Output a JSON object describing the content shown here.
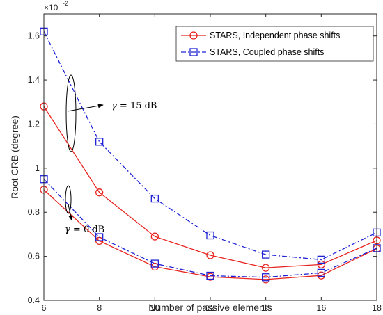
{
  "chart_data": {
    "type": "line",
    "xlabel": "Number of passive elements",
    "ylabel": "Root CRB (degree)",
    "y_exponent": {
      "base": "×10",
      "power": "-2"
    },
    "x": [
      6,
      8,
      10,
      12,
      14,
      16,
      18
    ],
    "xlim": [
      6,
      18
    ],
    "ylim": [
      0.4,
      1.7
    ],
    "x_ticks": [
      "6",
      "8",
      "10",
      "12",
      "14",
      "16",
      "18"
    ],
    "y_ticks": [
      "0.4",
      "0.6",
      "0.8",
      "1",
      "1.2",
      "1.4",
      "1.6"
    ],
    "grid": false,
    "legend_position": "top-right",
    "series": [
      {
        "name": "STARS, Independent phase shifts",
        "group": "gamma = 15 dB",
        "color": "#e8241f",
        "style": "solid",
        "marker": "circle",
        "values": [
          1.28,
          0.89,
          0.69,
          0.605,
          0.548,
          0.563,
          0.672
        ]
      },
      {
        "name": "STARS, Coupled phase shifts",
        "group": "gamma = 15 dB",
        "color": "#1f23d4",
        "style": "dashdot",
        "marker": "square",
        "values": [
          1.62,
          1.12,
          0.862,
          0.695,
          0.608,
          0.585,
          0.708
        ]
      },
      {
        "name": "STARS, Independent phase shifts",
        "group": "gamma = 0 dB",
        "color": "#e8241f",
        "style": "solid",
        "marker": "circle",
        "values": [
          0.902,
          0.67,
          0.553,
          0.507,
          0.495,
          0.513,
          0.635
        ]
      },
      {
        "name": "STARS, Coupled phase shifts",
        "group": "gamma = 0 dB",
        "color": "#1f23d4",
        "style": "dashdot",
        "marker": "square",
        "values": [
          0.95,
          0.687,
          0.567,
          0.512,
          0.505,
          0.525,
          0.637
        ]
      }
    ],
    "legend": [
      {
        "label": "STARS, Independent phase shifts",
        "color": "#e8241f",
        "style": "solid",
        "marker": "circle"
      },
      {
        "label": "STARS, Coupled phase shifts",
        "color": "#1f23d4",
        "style": "dashdot",
        "marker": "square"
      }
    ],
    "annotations": [
      {
        "symbol": "γ",
        "text": " = 15 dB"
      },
      {
        "symbol": "γ",
        "text": " = 0 dB"
      }
    ]
  }
}
